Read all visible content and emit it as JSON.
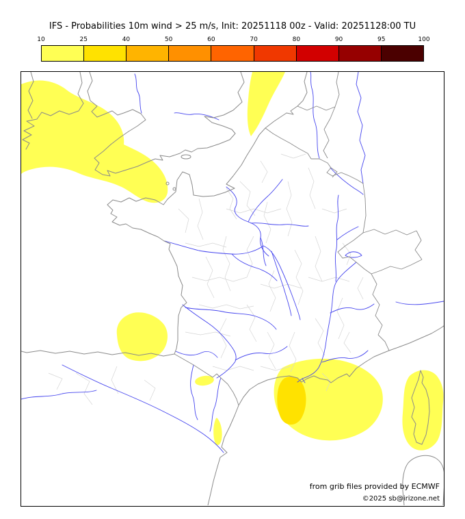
{
  "title": "IFS - Probabilities 10m wind > 25 m/s, Init: 20251118 00z - Valid: 20251128:00 TU",
  "legend": {
    "ticks": [
      "10",
      "25",
      "40",
      "50",
      "60",
      "70",
      "80",
      "90",
      "95",
      "100"
    ],
    "colors": [
      "#ffff54",
      "#ffe200",
      "#ffb400",
      "#ff9000",
      "#ff6400",
      "#f03800",
      "#d20000",
      "#960000",
      "#4b0000"
    ]
  },
  "attribution": {
    "line1": "from grib files provided by ECMWF",
    "line2": "©2025 sb@irizone.net"
  },
  "map": {
    "colors": {
      "coast": "#8a8a8a",
      "admin": "#d4d4d4",
      "river": "#4343ee",
      "prob10": "#ffff54",
      "prob25": "#ffe200",
      "sea": "#ffffff",
      "frame": "#000000"
    },
    "regions": [
      {
        "area": "Atlantic, south of Ireland toward western Channel and Brittany",
        "probability": "10-25"
      },
      {
        "area": "Strait of Dover / southern North Sea",
        "probability": "10-25"
      },
      {
        "area": "Bay of Biscay near Gironde coast",
        "probability": "10-25"
      },
      {
        "area": "Pyrenees foothills",
        "probability": "10-25"
      },
      {
        "area": "Gulf of Lion / Provence offshore",
        "probability": "10-25",
        "core": "25-40"
      },
      {
        "area": "Corsica and surrounding sea",
        "probability": "10-25"
      },
      {
        "area": "Catalan coast",
        "probability": "10-25"
      }
    ]
  }
}
